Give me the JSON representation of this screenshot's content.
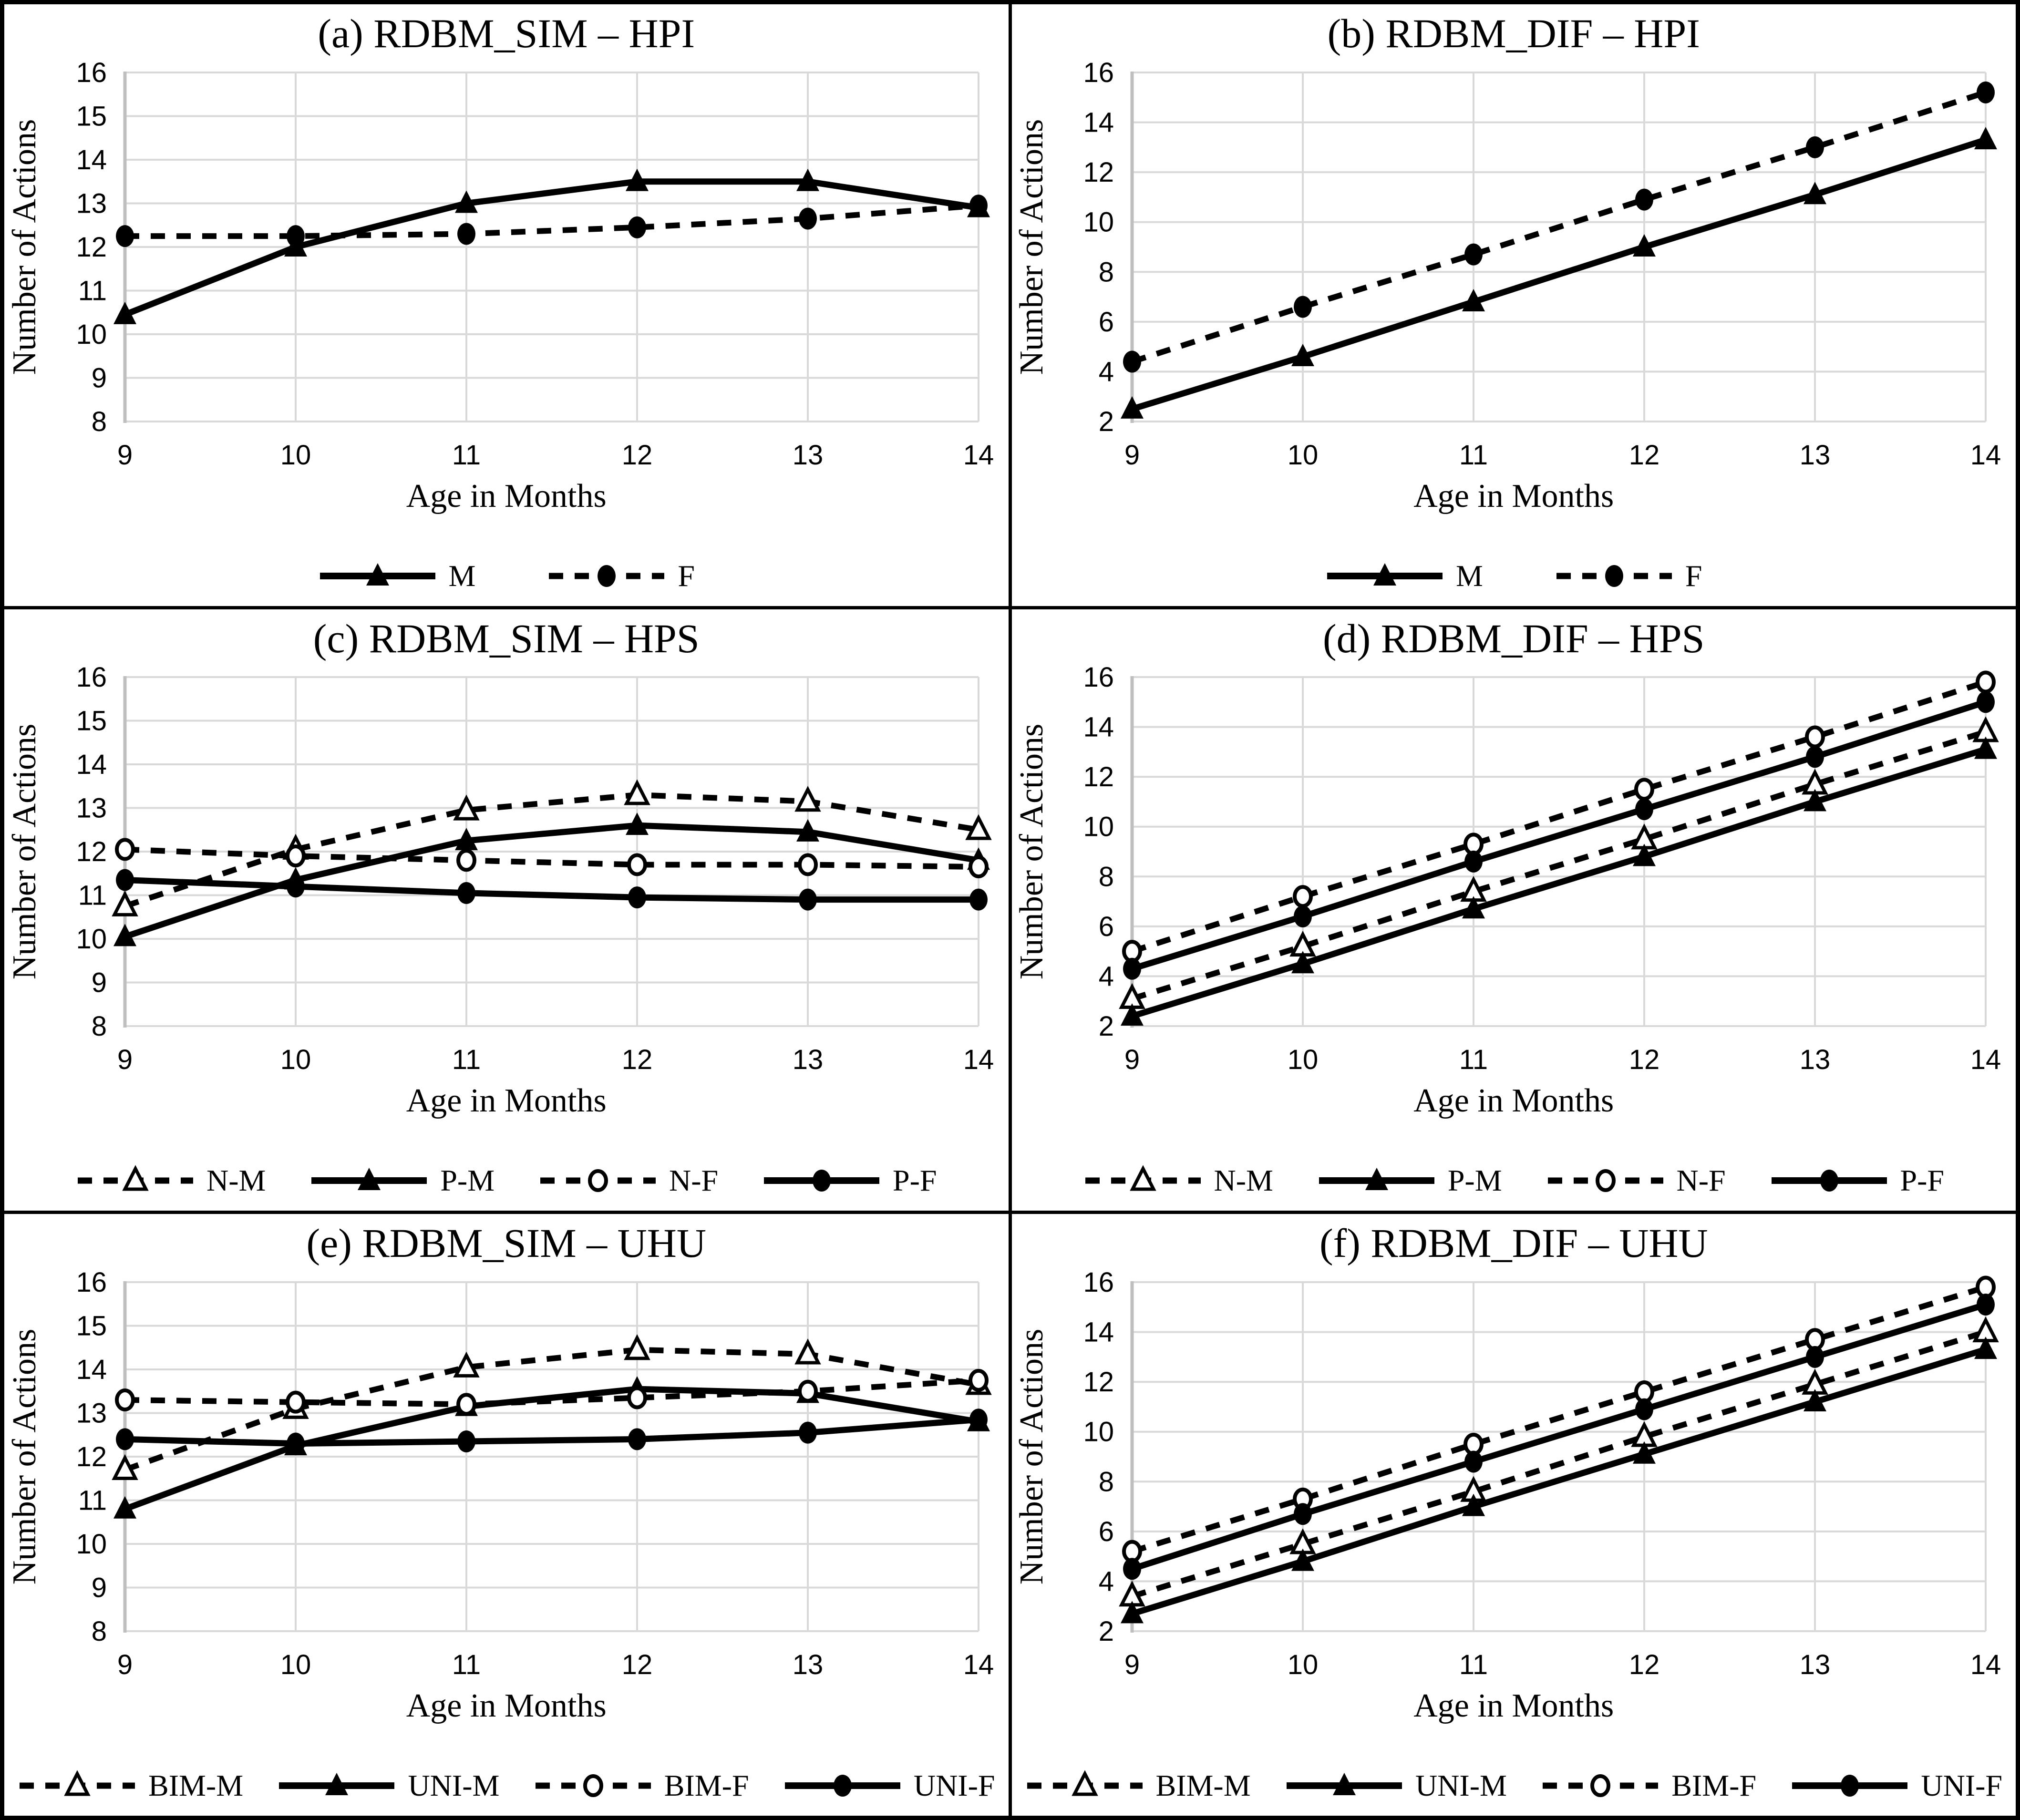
{
  "figure": {
    "xlabel": "Age in Months",
    "ylabel": "Number of Actions",
    "x_categories": [
      9,
      10,
      11,
      12,
      13,
      14
    ],
    "colors": {
      "series": "#000000",
      "gridline": "#d9d9d9",
      "axis_line": "#bfbfbf",
      "panel_border": "#000000",
      "background": "#ffffff"
    }
  },
  "chart_data": [
    {
      "type": "line",
      "title": "(a) RDBM_SIM – HPI",
      "xlabel": "Age in Months",
      "ylabel": "Number of Actions",
      "x": [
        9,
        10,
        11,
        12,
        13,
        14
      ],
      "ylim": [
        8,
        16
      ],
      "ytick_step": 1,
      "grid": true,
      "legend_position": "bottom",
      "legend_layout": "center",
      "series": [
        {
          "name": "M",
          "line": "solid",
          "marker": "triangle-filled",
          "values": [
            10.45,
            12.0,
            13.0,
            13.5,
            13.5,
            12.9
          ]
        },
        {
          "name": "F",
          "line": "dashed",
          "marker": "circle-filled",
          "values": [
            12.25,
            12.25,
            12.3,
            12.45,
            12.65,
            12.95
          ]
        }
      ]
    },
    {
      "type": "line",
      "title": "(b) RDBM_DIF – HPI",
      "xlabel": "Age in Months",
      "ylabel": "Number of Actions",
      "x": [
        9,
        10,
        11,
        12,
        13,
        14
      ],
      "ylim": [
        2,
        16
      ],
      "ytick_step": 2,
      "grid": true,
      "legend_position": "bottom",
      "legend_layout": "center",
      "series": [
        {
          "name": "M",
          "line": "solid",
          "marker": "triangle-filled",
          "values": [
            2.5,
            4.6,
            6.8,
            9.0,
            11.1,
            13.3
          ]
        },
        {
          "name": "F",
          "line": "dashed",
          "marker": "circle-filled",
          "values": [
            4.4,
            6.6,
            8.7,
            10.9,
            13.0,
            15.2
          ]
        }
      ]
    },
    {
      "type": "line",
      "title": "(c) RDBM_SIM – HPS",
      "xlabel": "Age in Months",
      "ylabel": "Number of Actions",
      "x": [
        9,
        10,
        11,
        12,
        13,
        14
      ],
      "ylim": [
        8,
        16
      ],
      "ytick_step": 1,
      "grid": true,
      "legend_position": "bottom",
      "legend_layout": "wide",
      "series": [
        {
          "name": "N-M",
          "line": "dashed",
          "marker": "triangle-open",
          "values": [
            10.75,
            12.05,
            12.95,
            13.3,
            13.15,
            12.5
          ]
        },
        {
          "name": "P-M",
          "line": "solid",
          "marker": "triangle-filled",
          "values": [
            10.05,
            11.35,
            12.25,
            12.6,
            12.45,
            11.8
          ]
        },
        {
          "name": "N-F",
          "line": "dashed",
          "marker": "circle-open",
          "values": [
            12.05,
            11.9,
            11.8,
            11.7,
            11.7,
            11.65
          ]
        },
        {
          "name": "P-F",
          "line": "solid",
          "marker": "circle-filled",
          "values": [
            11.35,
            11.2,
            11.05,
            10.95,
            10.9,
            10.9
          ]
        }
      ]
    },
    {
      "type": "line",
      "title": "(d) RDBM_DIF – HPS",
      "xlabel": "Age in Months",
      "ylabel": "Number of Actions",
      "x": [
        9,
        10,
        11,
        12,
        13,
        14
      ],
      "ylim": [
        2,
        16
      ],
      "ytick_step": 2,
      "grid": true,
      "legend_position": "bottom",
      "legend_layout": "wide",
      "series": [
        {
          "name": "N-M",
          "line": "dashed",
          "marker": "triangle-open",
          "values": [
            3.1,
            5.2,
            7.4,
            9.5,
            11.7,
            13.8
          ]
        },
        {
          "name": "P-M",
          "line": "solid",
          "marker": "triangle-filled",
          "values": [
            2.4,
            4.5,
            6.7,
            8.8,
            11.0,
            13.1
          ]
        },
        {
          "name": "N-F",
          "line": "dashed",
          "marker": "circle-open",
          "values": [
            5.0,
            7.2,
            9.3,
            11.5,
            13.6,
            15.8
          ]
        },
        {
          "name": "P-F",
          "line": "solid",
          "marker": "circle-filled",
          "values": [
            4.3,
            6.4,
            8.6,
            10.7,
            12.8,
            15.0
          ]
        }
      ]
    },
    {
      "type": "line",
      "title": "(e) RDBM_SIM – UHU",
      "xlabel": "Age in Months",
      "ylabel": "Number of Actions",
      "x": [
        9,
        10,
        11,
        12,
        13,
        14
      ],
      "ylim": [
        8,
        16
      ],
      "ytick_step": 1,
      "grid": true,
      "legend_position": "bottom",
      "legend_layout": "spread",
      "series": [
        {
          "name": "BIM-M",
          "line": "dashed",
          "marker": "triangle-open",
          "values": [
            11.7,
            13.1,
            14.05,
            14.45,
            14.35,
            13.65
          ]
        },
        {
          "name": "UNI-M",
          "line": "solid",
          "marker": "triangle-filled",
          "values": [
            10.8,
            12.25,
            13.15,
            13.55,
            13.45,
            12.8
          ]
        },
        {
          "name": "BIM-F",
          "line": "dashed",
          "marker": "circle-open",
          "values": [
            13.3,
            13.25,
            13.2,
            13.35,
            13.5,
            13.75
          ]
        },
        {
          "name": "UNI-F",
          "line": "solid",
          "marker": "circle-filled",
          "values": [
            12.4,
            12.3,
            12.35,
            12.4,
            12.55,
            12.85
          ]
        }
      ]
    },
    {
      "type": "line",
      "title": "(f) RDBM_DIF – UHU",
      "xlabel": "Age in Months",
      "ylabel": "Number of Actions",
      "x": [
        9,
        10,
        11,
        12,
        13,
        14
      ],
      "ylim": [
        2,
        16
      ],
      "ytick_step": 2,
      "grid": true,
      "legend_position": "bottom",
      "legend_layout": "spread",
      "series": [
        {
          "name": "BIM-M",
          "line": "dashed",
          "marker": "triangle-open",
          "values": [
            3.4,
            5.5,
            7.6,
            9.8,
            11.9,
            14.0
          ]
        },
        {
          "name": "UNI-M",
          "line": "solid",
          "marker": "triangle-filled",
          "values": [
            2.7,
            4.8,
            7.0,
            9.1,
            11.2,
            13.3
          ]
        },
        {
          "name": "BIM-F",
          "line": "dashed",
          "marker": "circle-open",
          "values": [
            5.2,
            7.3,
            9.5,
            11.6,
            13.7,
            15.8
          ]
        },
        {
          "name": "UNI-F",
          "line": "solid",
          "marker": "circle-filled",
          "values": [
            4.5,
            6.7,
            8.8,
            10.9,
            13.0,
            15.1
          ]
        }
      ]
    }
  ]
}
